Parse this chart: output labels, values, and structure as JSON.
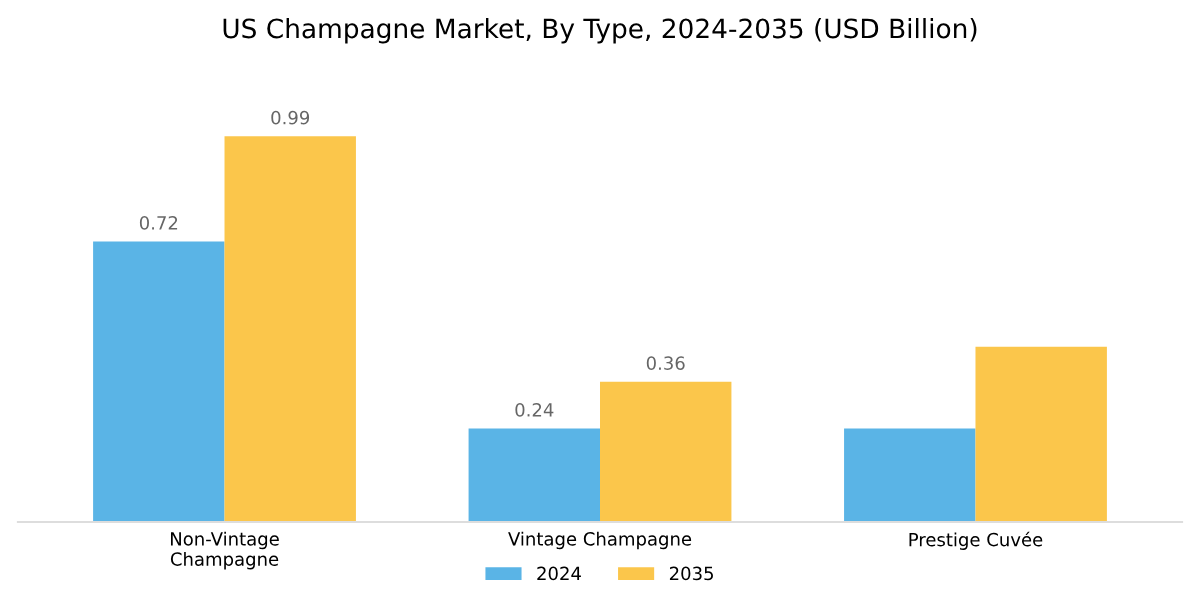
{
  "chart_data": {
    "type": "bar",
    "title": "US Champagne Market, By Type, 2024-2035 (USD Billion)",
    "categories": [
      "Non-Vintage\nChampagne",
      "Vintage Champagne",
      "Prestige Cuvée"
    ],
    "series": [
      {
        "name": "2024",
        "color": "#5ab4e6",
        "values": [
          0.72,
          0.24,
          0.24
        ],
        "value_labels": [
          "0.72",
          "0.24",
          null
        ]
      },
      {
        "name": "2035",
        "color": "#fbc64b",
        "values": [
          0.99,
          0.36,
          0.45
        ],
        "value_labels": [
          "0.99",
          "0.36",
          null
        ]
      }
    ],
    "legend": "bottom",
    "grid": false
  }
}
